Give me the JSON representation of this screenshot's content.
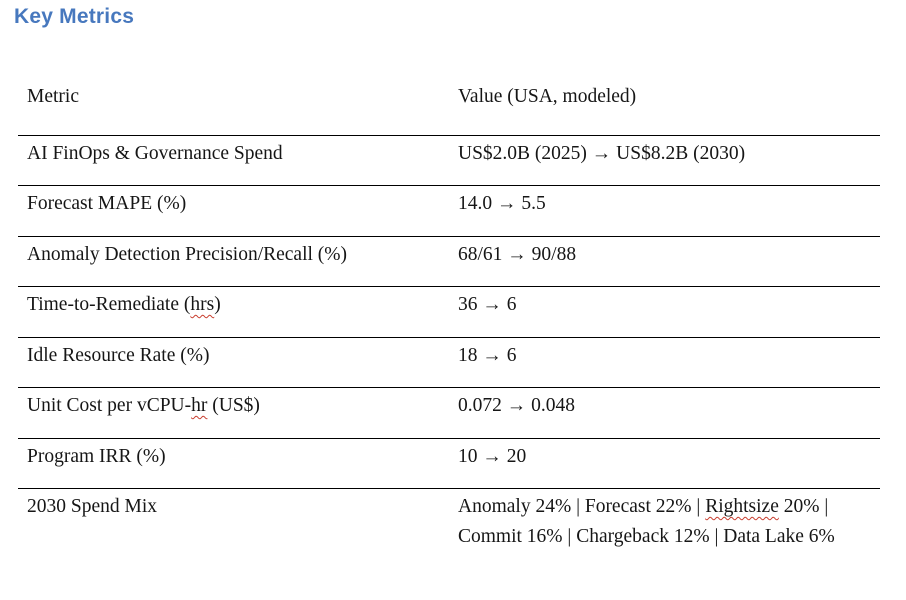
{
  "page": {
    "title": "Key Metrics"
  },
  "colors": {
    "title": "#4778BE",
    "text": "#161616",
    "rule": "#000000",
    "squiggle": "#C83C2D"
  },
  "table": {
    "headers": [
      "Metric",
      "Value (USA, modeled)"
    ],
    "rows": [
      {
        "metric": "AI FinOps & Governance Spend",
        "value": "US$2.0B (2025) → US$8.2B (2030)"
      },
      {
        "metric": "Forecast MAPE (%)",
        "value": "14.0 → 5.5"
      },
      {
        "metric": "Anomaly Detection Precision/Recall (%)",
        "value": "68/61 → 90/88"
      },
      {
        "metric": "Time-to-Remediate (hrs)",
        "value": "36 → 6",
        "marks": [
          {
            "field": "metric",
            "text": "hrs"
          }
        ]
      },
      {
        "metric": "Idle Resource Rate (%)",
        "value": "18 → 6"
      },
      {
        "metric": "Unit Cost per vCPU-hr (US$)",
        "value": "0.072 → 0.048",
        "marks": [
          {
            "field": "metric",
            "text": "hr (",
            "wrap": "hr"
          }
        ]
      },
      {
        "metric": "Program IRR (%)",
        "value": "10 → 20"
      },
      {
        "metric": "2030 Spend Mix",
        "value": "Anomaly 24% | Forecast 22% | Rightsize 20% | Commit 16% | Chargeback 12% | Data Lake 6%",
        "marks": [
          {
            "field": "value",
            "text": "Rightsize"
          }
        ]
      }
    ]
  }
}
